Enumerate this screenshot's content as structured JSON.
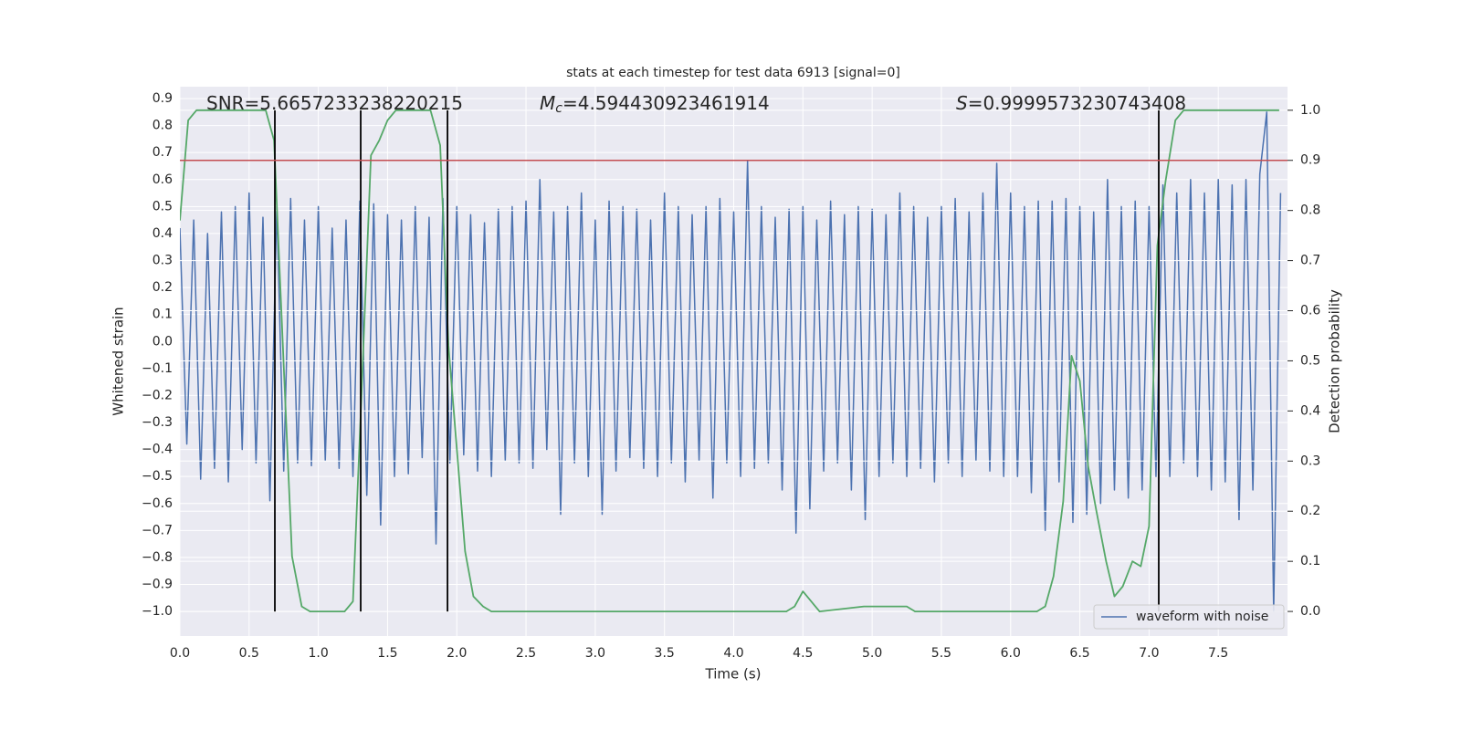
{
  "chart_data": {
    "type": "line",
    "title": "stats at each timestep for test data 6913 [signal=0]",
    "xlabel": "Time (s)",
    "ylabel": "Whitened strain",
    "y2label": "Detection probability",
    "xlim": [
      0,
      8.0
    ],
    "ylim": [
      -1.091,
      0.944
    ],
    "y2lim": [
      -0.049,
      1.047
    ],
    "xticks": [
      {
        "value": 0,
        "label": "0.0"
      },
      0.5,
      {
        "value": 1,
        "label": "1.0"
      },
      1.5,
      {
        "value": 2,
        "label": "2.0"
      },
      2.5,
      {
        "value": 3,
        "label": "3.0"
      },
      3.5,
      {
        "value": 4,
        "label": "4.0"
      },
      4.5,
      {
        "value": 5,
        "label": "5.0"
      },
      5.5,
      {
        "value": 6,
        "label": "6.0"
      },
      6.5,
      {
        "value": 7,
        "label": "7.0"
      },
      7.5
    ],
    "yticks": [
      {
        "value": -1.0,
        "label": "−1.0"
      },
      {
        "value": -0.9,
        "label": "−0.9"
      },
      {
        "value": -0.8,
        "label": "−0.8"
      },
      {
        "value": -0.7,
        "label": "−0.7"
      },
      {
        "value": -0.6,
        "label": "−0.6"
      },
      {
        "value": -0.5,
        "label": "−0.5"
      },
      {
        "value": -0.4,
        "label": "−0.4"
      },
      {
        "value": -0.3,
        "label": "−0.3"
      },
      {
        "value": -0.2,
        "label": "−0.2"
      },
      {
        "value": -0.1,
        "label": "−0.1"
      },
      {
        "value": 0,
        "label": "0.0"
      },
      0.1,
      0.2,
      0.3,
      0.4,
      0.5,
      0.6,
      0.7,
      0.8,
      0.9
    ],
    "y2ticks": [
      {
        "value": 0,
        "label": "0.0"
      },
      0.1,
      0.2,
      0.3,
      0.4,
      0.5,
      0.6,
      0.7,
      0.8,
      0.9,
      {
        "value": 1,
        "label": "1.0"
      }
    ],
    "grid": true,
    "legend": "lower right",
    "annotations": [
      {
        "text": "SNR=5.6657233238220215"
      },
      {
        "symbol": "M",
        "subscript": "c",
        "text": "=4.594430923461914"
      },
      {
        "symbol": "S",
        "text": "=0.9999573230743408"
      }
    ],
    "vlines": [
      0.686,
      1.306,
      1.933,
      7.07
    ],
    "vline_range_y2": [
      0,
      1
    ],
    "vline_color": "#000000",
    "hline_y2": 0.9,
    "hline_color": "#c44e52",
    "series": [
      {
        "name": "waveform with noise",
        "color": "#4c72b0",
        "x": [
          0,
          0.05,
          0.1,
          0.15,
          0.2,
          0.25,
          0.3,
          0.35,
          0.4,
          0.45,
          0.5,
          0.55,
          0.6,
          0.65,
          0.7,
          0.75,
          0.8,
          0.85,
          0.9,
          0.95,
          1,
          1.05,
          1.1,
          1.15,
          1.2,
          1.25,
          1.3,
          1.35,
          1.4,
          1.45,
          1.5,
          1.55,
          1.6,
          1.65,
          1.7,
          1.75,
          1.8,
          1.85,
          1.9,
          1.95,
          2,
          2.05,
          2.1,
          2.15,
          2.2,
          2.25,
          2.3,
          2.35,
          2.4,
          2.45,
          2.5,
          2.55,
          2.6,
          2.65,
          2.7,
          2.75,
          2.8,
          2.85,
          2.9,
          2.95,
          3,
          3.05,
          3.1,
          3.15,
          3.2,
          3.25,
          3.3,
          3.35,
          3.4,
          3.45,
          3.5,
          3.55,
          3.6,
          3.65,
          3.7,
          3.75,
          3.8,
          3.85,
          3.9,
          3.95,
          4,
          4.05,
          4.1,
          4.15,
          4.2,
          4.25,
          4.3,
          4.35,
          4.4,
          4.45,
          4.5,
          4.55,
          4.6,
          4.65,
          4.7,
          4.75,
          4.8,
          4.85,
          4.9,
          4.95,
          5,
          5.05,
          5.1,
          5.15,
          5.2,
          5.25,
          5.3,
          5.35,
          5.4,
          5.45,
          5.5,
          5.55,
          5.6,
          5.65,
          5.7,
          5.75,
          5.8,
          5.85,
          5.9,
          5.95,
          6,
          6.05,
          6.1,
          6.15,
          6.2,
          6.25,
          6.3,
          6.35,
          6.4,
          6.45,
          6.5,
          6.55,
          6.6,
          6.65,
          6.7,
          6.75,
          6.8,
          6.85,
          6.9,
          6.95,
          7,
          7.05,
          7.1,
          7.15,
          7.2,
          7.25,
          7.3,
          7.35,
          7.4,
          7.45,
          7.5,
          7.55,
          7.6,
          7.65,
          7.7,
          7.75,
          7.8,
          7.85,
          7.9,
          7.95
        ],
        "values": [
          0.42,
          -0.38,
          0.45,
          -0.51,
          0.4,
          -0.47,
          0.48,
          -0.52,
          0.5,
          -0.4,
          0.55,
          -0.45,
          0.46,
          -0.59,
          0.5,
          -0.48,
          0.53,
          -0.45,
          0.45,
          -0.46,
          0.5,
          -0.44,
          0.42,
          -0.47,
          0.45,
          -0.5,
          0.52,
          -0.57,
          0.51,
          -0.68,
          0.47,
          -0.5,
          0.45,
          -0.49,
          0.5,
          -0.43,
          0.46,
          -0.75,
          0.53,
          -0.45,
          0.5,
          -0.42,
          0.47,
          -0.48,
          0.44,
          -0.5,
          0.49,
          -0.44,
          0.5,
          -0.45,
          0.52,
          -0.47,
          0.6,
          -0.4,
          0.48,
          -0.64,
          0.5,
          -0.45,
          0.55,
          -0.5,
          0.45,
          -0.64,
          0.52,
          -0.48,
          0.5,
          -0.43,
          0.49,
          -0.47,
          0.45,
          -0.5,
          0.55,
          -0.45,
          0.5,
          -0.52,
          0.47,
          -0.44,
          0.5,
          -0.58,
          0.53,
          -0.45,
          0.48,
          -0.5,
          0.67,
          -0.47,
          0.5,
          -0.45,
          0.46,
          -0.55,
          0.49,
          -0.71,
          0.5,
          -0.62,
          0.45,
          -0.48,
          0.52,
          -0.45,
          0.47,
          -0.55,
          0.5,
          -0.66,
          0.49,
          -0.5,
          0.47,
          -0.45,
          0.55,
          -0.5,
          0.5,
          -0.47,
          0.46,
          -0.52,
          0.5,
          -0.45,
          0.53,
          -0.5,
          0.48,
          -0.44,
          0.55,
          -0.48,
          0.66,
          -0.5,
          0.55,
          -0.5,
          0.5,
          -0.56,
          0.52,
          -0.7,
          0.52,
          -0.52,
          0.53,
          -0.67,
          0.5,
          -0.64,
          0.48,
          -0.6,
          0.6,
          -0.55,
          0.5,
          -0.58,
          0.52,
          -0.55,
          0.5,
          -0.5,
          0.58,
          -0.5,
          0.55,
          -0.45,
          0.6,
          -0.5,
          0.55,
          -0.55,
          0.6,
          -0.52,
          0.58,
          -0.66,
          0.6,
          -0.55,
          0.62,
          0.85,
          -1.0,
          0.55
        ]
      },
      {
        "color": "#55a868",
        "axis": "y2",
        "x": [
          0,
          0.06,
          0.12,
          0.62,
          0.68,
          0.75,
          0.81,
          0.88,
          0.94,
          1.19,
          1.25,
          1.31,
          1.38,
          1.44,
          1.5,
          1.56,
          1.81,
          1.88,
          1.94,
          2.06,
          2.12,
          2.19,
          2.25,
          4.38,
          4.44,
          4.5,
          4.56,
          4.62,
          4.94,
          5.0,
          5.06,
          5.19,
          5.25,
          5.31,
          6.19,
          6.25,
          6.31,
          6.38,
          6.44,
          6.5,
          6.56,
          6.62,
          6.69,
          6.75,
          6.81,
          6.88,
          6.94,
          7.0,
          7.06,
          7.12,
          7.19,
          7.25,
          7.94
        ],
        "values": [
          0.78,
          0.98,
          1.0,
          1.0,
          0.94,
          0.49,
          0.11,
          0.01,
          0.0,
          0.0,
          0.02,
          0.42,
          0.91,
          0.94,
          0.98,
          1.0,
          1.0,
          0.93,
          0.53,
          0.12,
          0.03,
          0.01,
          0.0,
          0.0,
          0.01,
          0.04,
          0.02,
          0.0,
          0.01,
          0.01,
          0.01,
          0.01,
          0.01,
          0.0,
          0.0,
          0.01,
          0.07,
          0.22,
          0.51,
          0.46,
          0.29,
          0.2,
          0.1,
          0.03,
          0.05,
          0.1,
          0.09,
          0.17,
          0.73,
          0.86,
          0.98,
          1.0,
          1.0
        ]
      }
    ]
  }
}
